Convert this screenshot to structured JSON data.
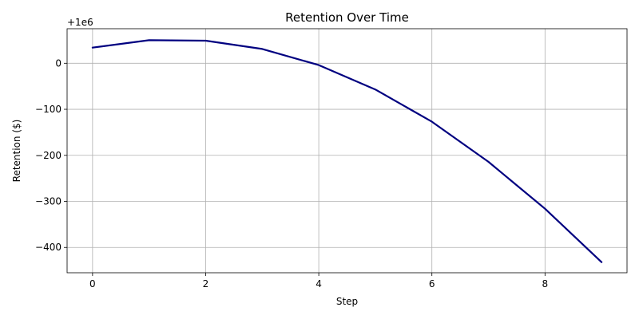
{
  "chart_data": {
    "type": "line",
    "title": "Retention Over Time",
    "xlabel": "Step",
    "ylabel": "Retention ($)",
    "offset_label": "+1e6",
    "x": [
      0,
      1,
      2,
      3,
      4,
      5,
      6,
      7,
      8,
      9
    ],
    "series": [
      {
        "values": [
          34,
          50,
          49,
          31,
          -4,
          -57,
          -127,
          -214,
          -316,
          -432
        ],
        "color": "#000080"
      }
    ],
    "xlim": [
      -0.45,
      9.45
    ],
    "ylim": [
      -455,
      75
    ],
    "x_ticks": [
      0,
      2,
      4,
      6,
      8
    ],
    "x_tick_labels": [
      "0",
      "2",
      "4",
      "6",
      "8"
    ],
    "y_ticks": [
      0,
      -100,
      -200,
      -300,
      -400
    ],
    "y_tick_labels": [
      "0",
      "−100",
      "−200",
      "−300",
      "−400"
    ],
    "grid": true,
    "legend": false
  }
}
